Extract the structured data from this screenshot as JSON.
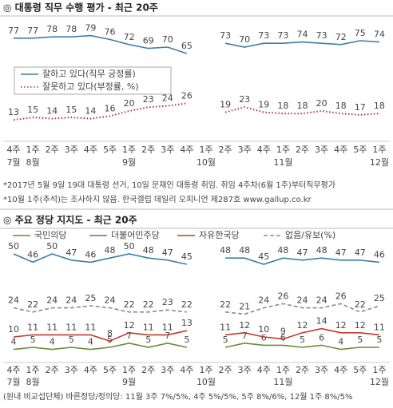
{
  "chart_data": [
    {
      "type": "line",
      "title": "◎ 대통령 직무 수행 평가 - 최근 20주",
      "categories": [
        "4주",
        "1주",
        "2주",
        "3주",
        "4주",
        "5주",
        "1주",
        "2주",
        "3주",
        "4주",
        "1주",
        "2주",
        "3주",
        "4주",
        "1주",
        "2주",
        "3주",
        "4주",
        "5주",
        "1주"
      ],
      "months": [
        "7월",
        "8월",
        null,
        null,
        null,
        null,
        "9월",
        null,
        null,
        null,
        "10월",
        null,
        null,
        null,
        "11월",
        null,
        null,
        null,
        null,
        "12월"
      ],
      "series": [
        {
          "name": "잘하고 있다(직무 긍정률)",
          "color": "#3d7fa8",
          "style": "solid",
          "values": [
            77,
            77,
            78,
            78,
            79,
            76,
            72,
            69,
            70,
            65,
            null,
            73,
            70,
            73,
            73,
            74,
            73,
            72,
            75,
            74
          ]
        },
        {
          "name": "잘못하고 있다(부정률, %)",
          "color": "#a8362e",
          "style": "dotted",
          "values": [
            13,
            15,
            14,
            15,
            14,
            16,
            20,
            23,
            24,
            26,
            null,
            19,
            23,
            19,
            18,
            18,
            20,
            18,
            17,
            18
          ]
        }
      ],
      "ylim": [
        0,
        100
      ],
      "legend": "box",
      "notes": [
        "*2017년 5월 9일 19대 대통령 선거, 10일 문재인 대통령 취임. 취임 4주차(6월 1주)부터직무평가",
        "*10월 1주(추석)는 조사하지 않음. 한국갤럽 데일리 오피니언 제287호 www.gallup.co.kr"
      ]
    },
    {
      "type": "line",
      "title": "◎ 주요 정당 지지도 - 최근 20주",
      "categories": [
        "4주",
        "1주",
        "2주",
        "3주",
        "4주",
        "5주",
        "1주",
        "2주",
        "3주",
        "4주",
        "1주",
        "2주",
        "3주",
        "4주",
        "1주",
        "2주",
        "3주",
        "4주",
        "5주",
        "1주"
      ],
      "months": [
        "7월",
        "8월",
        null,
        null,
        null,
        null,
        "9월",
        null,
        null,
        null,
        "10월",
        null,
        null,
        null,
        "11월",
        null,
        null,
        null,
        null,
        "12월"
      ],
      "series": [
        {
          "name": "국민의당",
          "color": "#6b8a3a",
          "style": "solid",
          "values": [
            4,
            5,
            4,
            5,
            4,
            5,
            7,
            5,
            7,
            5,
            null,
            5,
            7,
            6,
            6,
            5,
            6,
            4,
            5,
            5
          ]
        },
        {
          "name": "더불어민주당",
          "color": "#3d7fa8",
          "style": "solid",
          "values": [
            50,
            46,
            50,
            47,
            46,
            48,
            50,
            48,
            47,
            45,
            null,
            48,
            48,
            45,
            48,
            47,
            48,
            47,
            47,
            46
          ]
        },
        {
          "name": "자유한국당",
          "color": "#c0392b",
          "style": "solid",
          "values": [
            10,
            11,
            11,
            11,
            11,
            8,
            12,
            11,
            11,
            13,
            null,
            11,
            12,
            10,
            9,
            12,
            14,
            12,
            12,
            11
          ]
        },
        {
          "name": "없음/유보(%)",
          "color": "#8c8c8c",
          "style": "dashed",
          "values": [
            24,
            22,
            24,
            24,
            25,
            24,
            22,
            22,
            23,
            22,
            null,
            22,
            21,
            24,
            26,
            24,
            24,
            26,
            22,
            25
          ]
        }
      ],
      "ylim": [
        0,
        55
      ],
      "legend": "top",
      "notes": [
        "(원내 비교섭단체) 바른정당/정의당: 11월 3주 7%/5%, 4주 5%/5%, 5주 8%/6%, 12월 1주 8%/5%"
      ]
    }
  ]
}
